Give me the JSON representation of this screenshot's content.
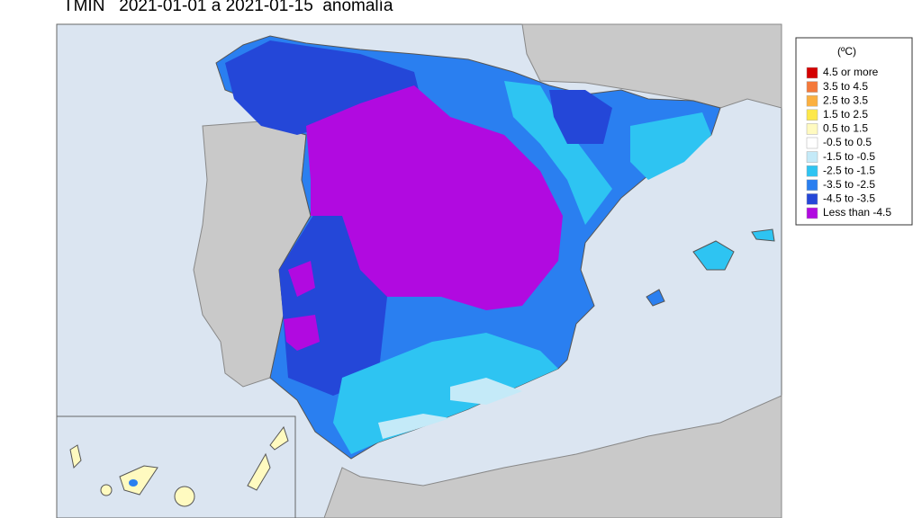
{
  "title": "TMIN   2021-01-01 a 2021-01-15  anomalía",
  "legend": {
    "title": "(ºC)",
    "items": [
      {
        "label": "4.5 or more",
        "color": "#d40000"
      },
      {
        "label": "3.5 to 4.5",
        "color": "#f4793a"
      },
      {
        "label": "2.5 to 3.5",
        "color": "#fbb040"
      },
      {
        "label": "1.5 to 2.5",
        "color": "#fde84a"
      },
      {
        "label": "0.5 to 1.5",
        "color": "#fffac0"
      },
      {
        "label": "-0.5 to 0.5",
        "color": "#ffffff"
      },
      {
        "label": "-1.5 to -0.5",
        "color": "#c4eaf8"
      },
      {
        "label": "-2.5 to -1.5",
        "color": "#2ec4f2"
      },
      {
        "label": "-3.5 to -2.5",
        "color": "#2a7ff0"
      },
      {
        "label": "-4.5 to -3.5",
        "color": "#2447d8"
      },
      {
        "label": "Less than -4.5",
        "color": "#b10ae0"
      }
    ]
  }
}
